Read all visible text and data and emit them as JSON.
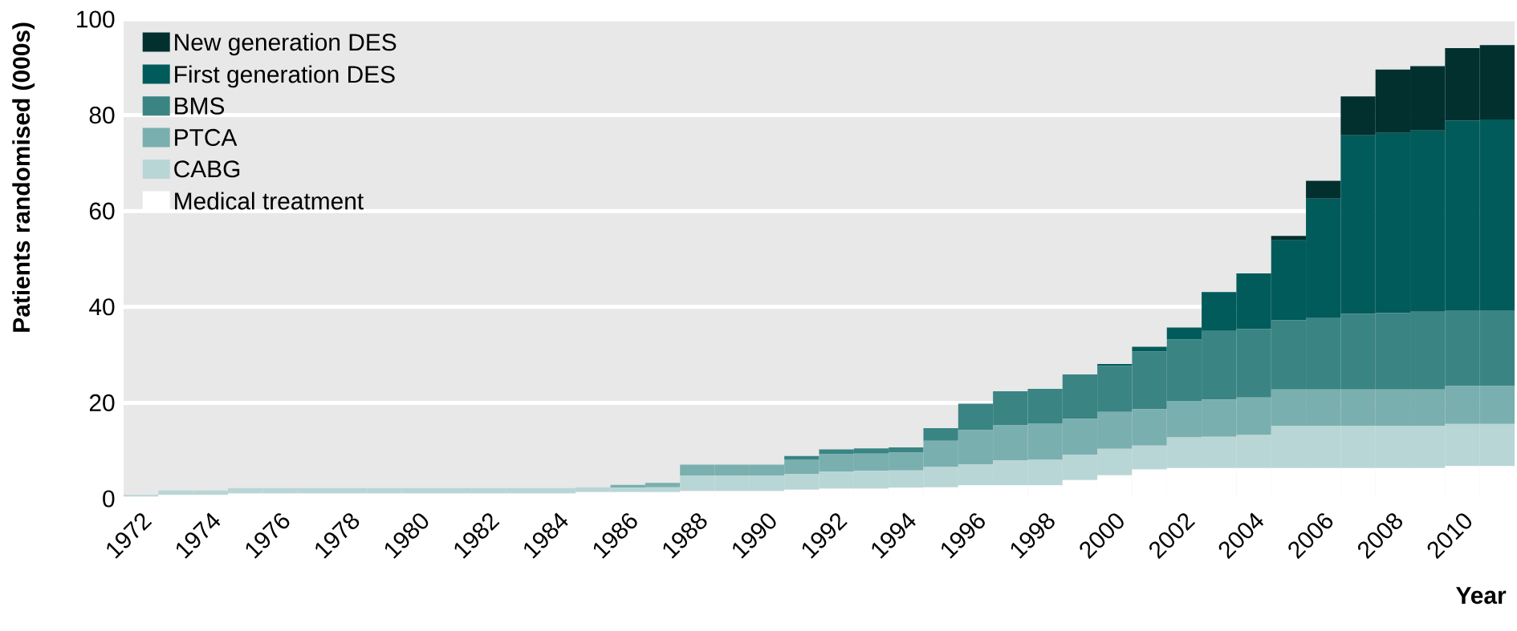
{
  "chart_data": {
    "type": "bar",
    "stacked": true,
    "xlabel": "Year",
    "ylabel": "Patients randomised (000s)",
    "x": [
      1972,
      1973,
      1974,
      1975,
      1976,
      1977,
      1978,
      1979,
      1980,
      1981,
      1982,
      1983,
      1984,
      1985,
      1986,
      1987,
      1988,
      1989,
      1990,
      1991,
      1992,
      1993,
      1994,
      1995,
      1996,
      1997,
      1998,
      1999,
      2000,
      2001,
      2002,
      2003,
      2004,
      2005,
      2006,
      2007,
      2008,
      2009,
      2010,
      2011
    ],
    "xlim": [
      1971.5,
      2011.5
    ],
    "xticks": [
      1972,
      1974,
      1976,
      1978,
      1980,
      1982,
      1984,
      1986,
      1988,
      1990,
      1992,
      1994,
      1996,
      1998,
      2000,
      2002,
      2004,
      2006,
      2008,
      2010
    ],
    "ylim": [
      0,
      100
    ],
    "yticks": [
      0,
      20,
      40,
      60,
      80,
      100
    ],
    "grid": "y",
    "legend": "top left",
    "series": [
      {
        "name": "Medical treatment",
        "color": "#ffffff",
        "values": [
          0.4,
          0.8,
          0.8,
          1.1,
          1.1,
          1.1,
          1.1,
          1.1,
          1.1,
          1.1,
          1.1,
          1.1,
          1.1,
          1.4,
          1.4,
          1.4,
          1.6,
          1.6,
          1.6,
          1.9,
          2.1,
          2.1,
          2.3,
          2.4,
          2.8,
          2.8,
          2.8,
          3.9,
          4.9,
          6.1,
          6.4,
          6.4,
          6.4,
          6.4,
          6.4,
          6.4,
          6.4,
          6.4,
          6.8,
          6.8
        ]
      },
      {
        "name": "CABG",
        "color": "#b9d6d6",
        "values": [
          0.4,
          0.9,
          0.9,
          1.1,
          1.1,
          1.1,
          1.1,
          1.1,
          1.1,
          1.1,
          1.1,
          1.1,
          1.1,
          1.0,
          0.9,
          1.0,
          3.2,
          3.2,
          3.2,
          3.3,
          3.6,
          3.7,
          3.6,
          4.2,
          4.4,
          5.2,
          5.3,
          5.3,
          5.5,
          5.0,
          6.4,
          6.5,
          6.9,
          8.8,
          8.8,
          8.8,
          8.8,
          8.8,
          8.8,
          8.8
        ]
      },
      {
        "name": "PTCA",
        "color": "#7aafaf",
        "values": [
          0,
          0,
          0,
          0,
          0,
          0,
          0,
          0,
          0,
          0,
          0,
          0,
          0,
          0,
          0.6,
          0.9,
          2.3,
          2.3,
          2.3,
          3.0,
          3.6,
          3.6,
          3.7,
          5.5,
          7.1,
          7.3,
          7.6,
          7.5,
          7.7,
          7.6,
          7.6,
          7.8,
          7.8,
          7.6,
          7.6,
          7.6,
          7.6,
          7.6,
          7.9,
          7.9
        ]
      },
      {
        "name": "BMS",
        "color": "#3a8484",
        "values": [
          0,
          0,
          0,
          0,
          0,
          0,
          0,
          0,
          0,
          0,
          0,
          0,
          0,
          0,
          0,
          0,
          0,
          0,
          0,
          0.7,
          1.0,
          1.1,
          1.1,
          2.6,
          5.5,
          7.1,
          7.2,
          9.2,
          9.6,
          12.0,
          12.8,
          14.3,
          14.3,
          14.4,
          15.0,
          15.8,
          15.9,
          16.2,
          15.8,
          15.8
        ]
      },
      {
        "name": "First generation DES",
        "color": "#005b5a",
        "values": [
          0,
          0,
          0,
          0,
          0,
          0,
          0,
          0,
          0,
          0,
          0,
          0,
          0,
          0,
          0,
          0,
          0,
          0,
          0,
          0,
          0,
          0,
          0,
          0,
          0,
          0,
          0,
          0,
          0.4,
          1.0,
          2.5,
          8.1,
          11.6,
          16.7,
          24.8,
          37.2,
          37.6,
          37.8,
          39.6,
          39.8
        ]
      },
      {
        "name": "New generation DES",
        "color": "#01302f",
        "values": [
          0,
          0,
          0,
          0,
          0,
          0,
          0,
          0,
          0,
          0,
          0,
          0,
          0,
          0,
          0,
          0,
          0,
          0,
          0,
          0,
          0,
          0,
          0,
          0,
          0,
          0,
          0,
          0,
          0,
          0,
          0,
          0,
          0,
          0.9,
          3.7,
          8.1,
          13.2,
          13.4,
          15.1,
          15.5
        ]
      }
    ]
  }
}
